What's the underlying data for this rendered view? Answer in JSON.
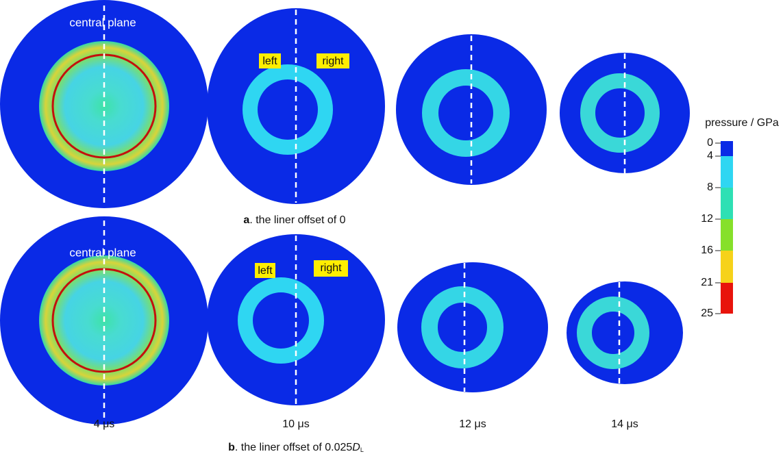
{
  "annotations": {
    "central_plane": [
      "central plane",
      "central plane"
    ],
    "left": [
      "left",
      "left"
    ],
    "right": [
      "right",
      "right"
    ]
  },
  "captions": {
    "a": {
      "label": "a",
      "text": ". the liner offset of 0"
    },
    "b": {
      "label": "b",
      "text": ". the liner offset of 0.025",
      "symbol": "D",
      "subscript": "L"
    }
  },
  "times": [
    "4 μs",
    "10 μs",
    "12 μs",
    "14 μs"
  ],
  "colorbar": {
    "title": "pressure / GPa",
    "ticks": [
      0,
      4,
      8,
      12,
      16,
      21,
      25
    ],
    "colors": [
      "#0a2ae6",
      "#2fd6f2",
      "#2ee0b4",
      "#86e02a",
      "#f6d21a",
      "#e8140c"
    ]
  }
}
